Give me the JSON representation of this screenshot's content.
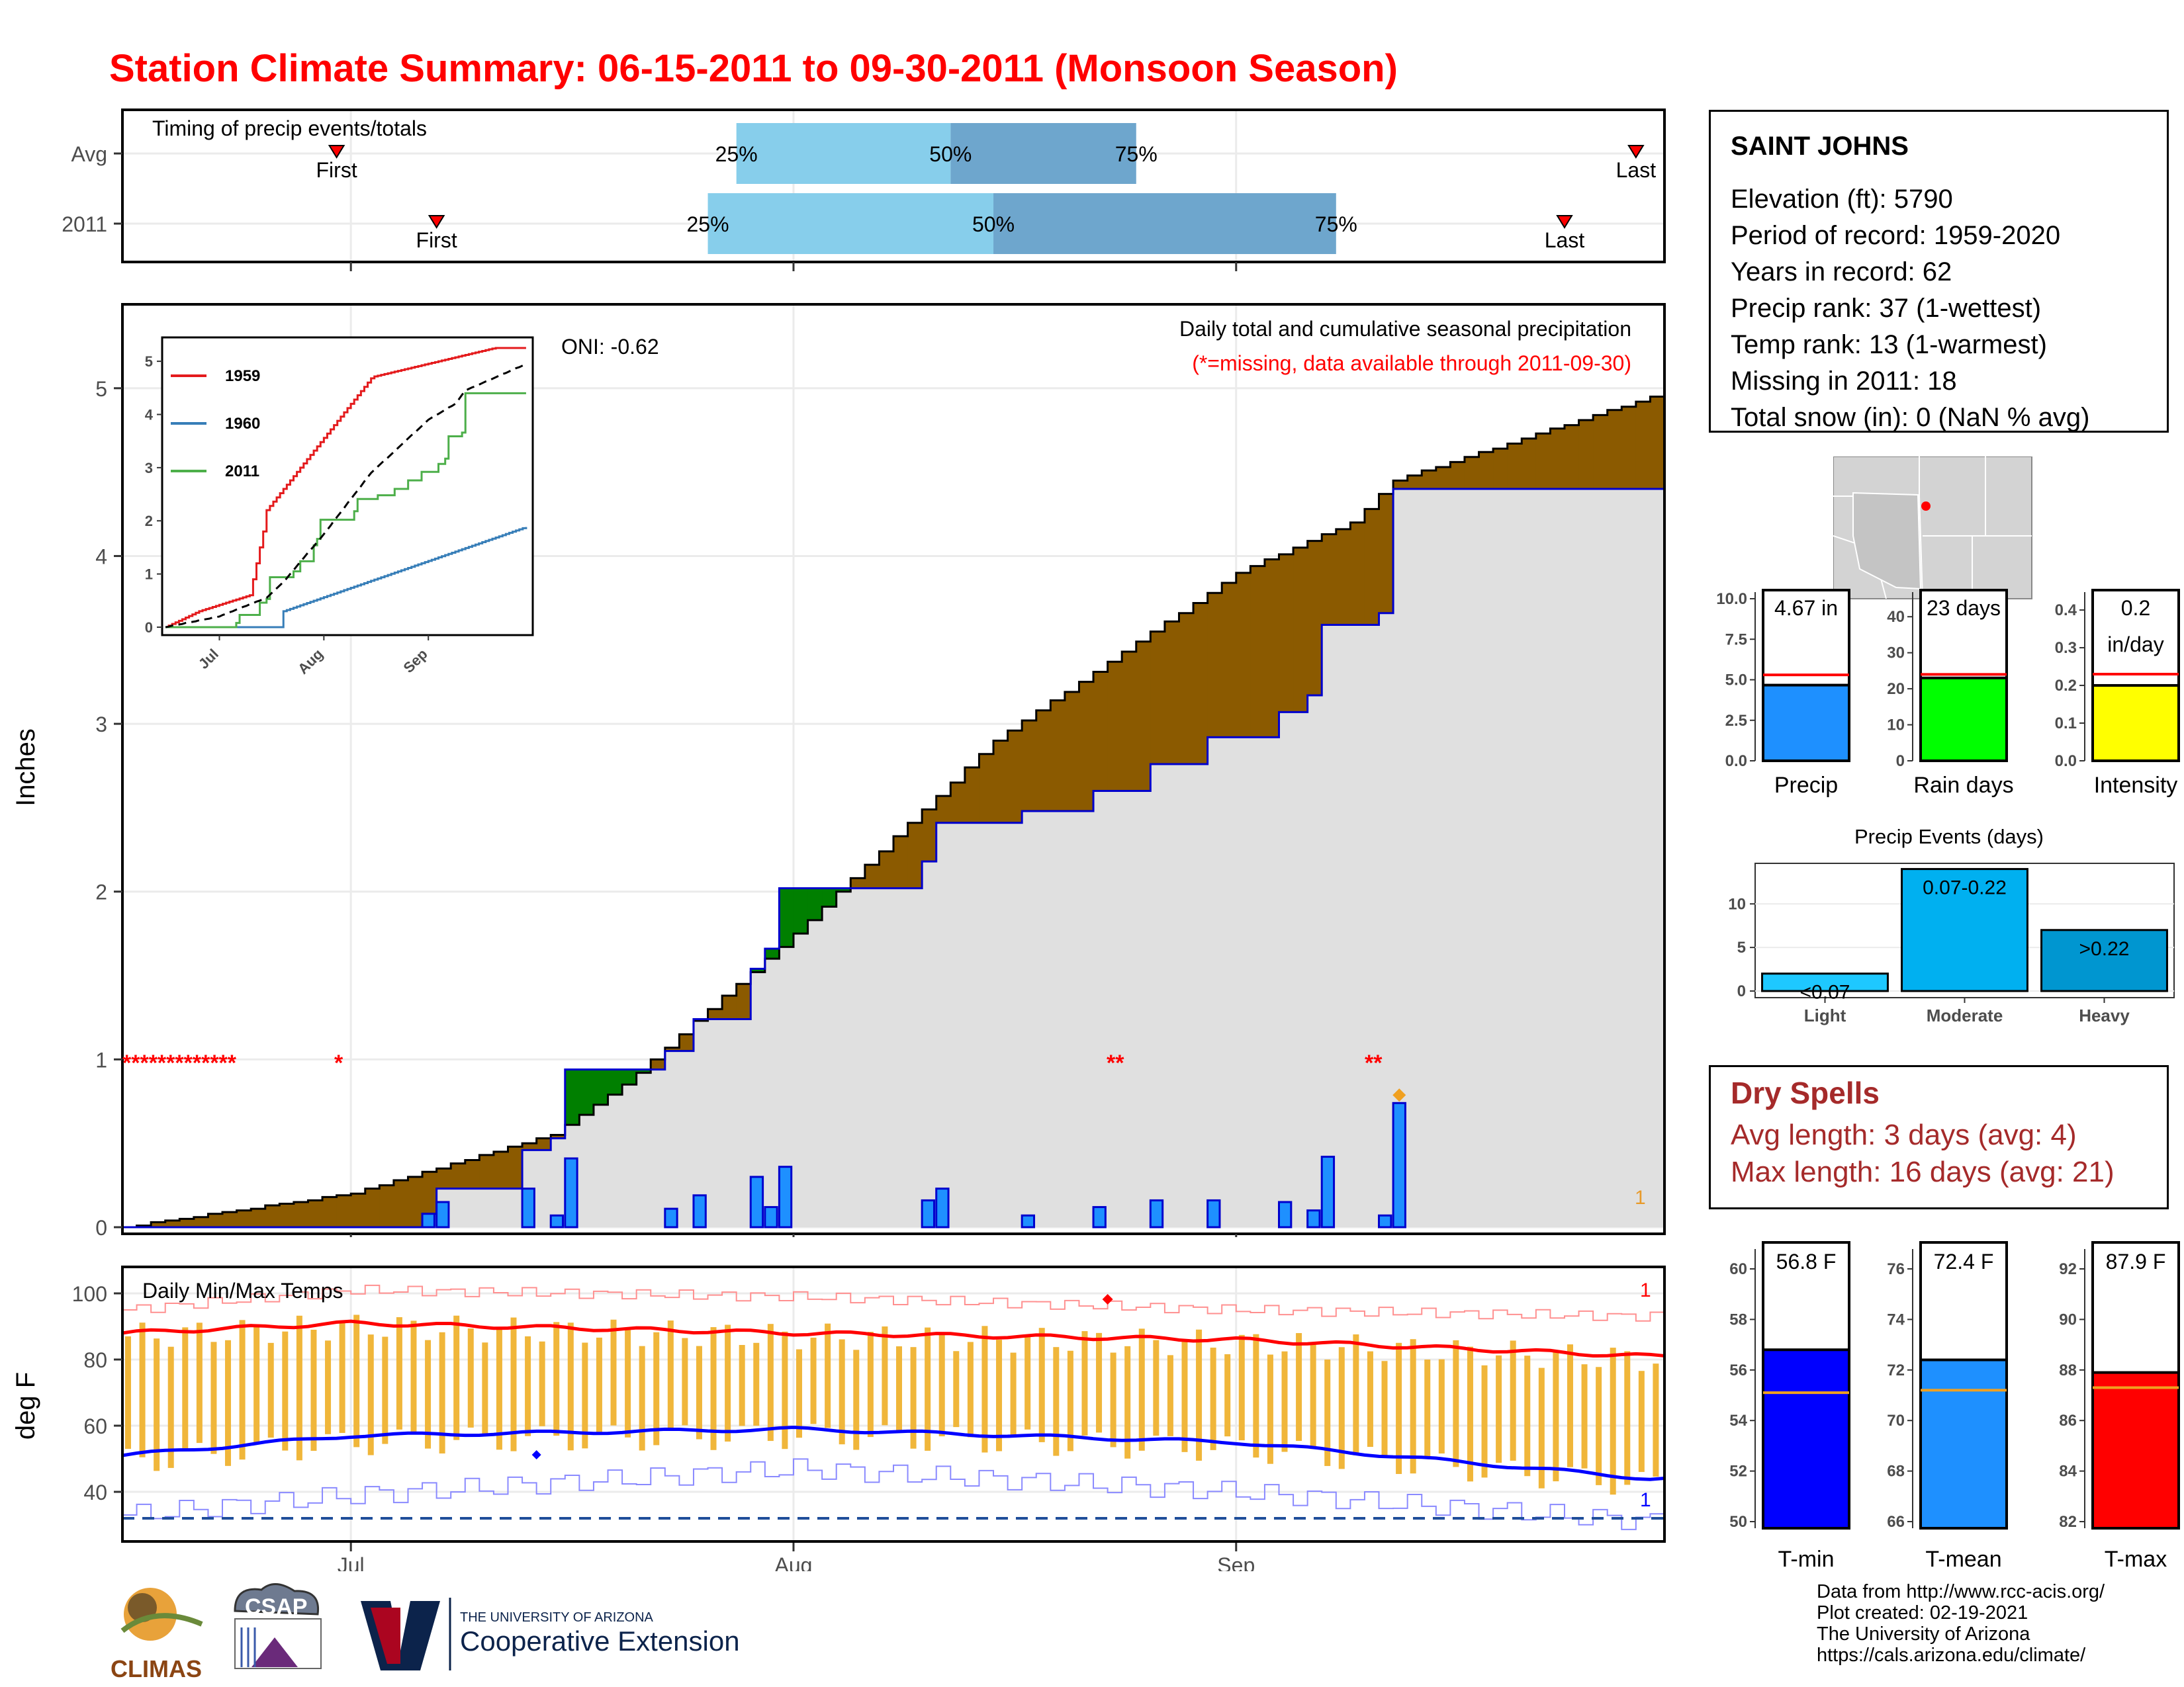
{
  "title": "Station Climate Summary: 06-15-2011 to 09-30-2011 (Monsoon Season)",
  "timing": {
    "title": "Timing of precip events/totals",
    "rows": [
      {
        "label": "Avg",
        "first": "First",
        "last": "Last",
        "p25": "25%",
        "p50": "50%",
        "p75": "75%"
      },
      {
        "label": "2011",
        "first": "First",
        "last": "Last",
        "p25": "25%",
        "p50": "50%",
        "p75": "75%"
      }
    ]
  },
  "station": {
    "name": "SAINT JOHNS",
    "lines": [
      "Elevation (ft): 5790",
      "Period of record: 1959-2020",
      "Years in record: 62",
      "Precip rank: 37 (1-wettest)",
      "Temp rank: 13 (1-warmest)",
      "Missing in 2011: 18",
      "Total snow (in): 0 (NaN % avg)"
    ]
  },
  "precip_panel": {
    "ylabel": "Inches",
    "yticks": [
      "0",
      "1",
      "2",
      "3",
      "4",
      "5"
    ],
    "xticks": [
      "Jul",
      "Aug",
      "Sep"
    ],
    "title_line1": "Daily total and cumulative seasonal precipitation",
    "title_line2": "(*=missing, data available through 2011-09-30)",
    "oni": "ONI: -0.62",
    "missing_marks": "*************",
    "count_label": "1",
    "inset": {
      "yticks": [
        "0",
        "1",
        "2",
        "3",
        "4",
        "5"
      ],
      "xticks": [
        "Jul",
        "Aug",
        "Sep"
      ],
      "legend": [
        "1959",
        "1960",
        "2011"
      ]
    }
  },
  "temp_panel": {
    "title": "Daily Min/Max Temps",
    "ylabel": "deg F",
    "yticks": [
      "40",
      "60",
      "80",
      "100"
    ],
    "xticks": [
      "Jul",
      "Aug",
      "Sep"
    ],
    "count_max": "1",
    "count_min": "1"
  },
  "bar_summaries": {
    "precip": {
      "value": "4.67 in",
      "label": "Precip",
      "yticks": [
        "0.0",
        "2.5",
        "5.0",
        "7.5",
        "10.0"
      ]
    },
    "raindays": {
      "value": "23 days",
      "label": "Rain days",
      "yticks": [
        "0",
        "10",
        "20",
        "30",
        "40"
      ]
    },
    "intensity": {
      "value1": "0.2",
      "value2": "in/day",
      "label": "Intensity",
      "yticks": [
        "0.0",
        "0.1",
        "0.2",
        "0.3",
        "0.4"
      ]
    }
  },
  "events": {
    "title": "Precip Events (days)",
    "yticks": [
      "0",
      "5",
      "10"
    ],
    "bars": [
      {
        "cat": "Light",
        "label": "<0.07"
      },
      {
        "cat": "Moderate",
        "label": "0.07-0.22"
      },
      {
        "cat": "Heavy",
        "label": ">0.22"
      }
    ]
  },
  "dry_spells": {
    "title": "Dry Spells",
    "line1": "Avg length: 3 days (avg: 4)",
    "line2": "Max length: 16 days (avg: 21)"
  },
  "temp_summaries": {
    "tmin": {
      "value": "56.8 F",
      "label": "T-min",
      "yticks": [
        "50",
        "52",
        "54",
        "56",
        "58",
        "60"
      ]
    },
    "tmean": {
      "value": "72.4 F",
      "label": "T-mean",
      "yticks": [
        "66",
        "68",
        "70",
        "72",
        "74",
        "76"
      ]
    },
    "tmax": {
      "value": "87.9 F",
      "label": "T-max",
      "yticks": [
        "82",
        "84",
        "86",
        "88",
        "90",
        "92"
      ]
    }
  },
  "credits": [
    "Data from http://www.rcc-acis.org/",
    "Plot created: 02-19-2021",
    "The University of Arizona",
    "https://cals.arizona.edu/climate/"
  ],
  "logos": {
    "climas": "CLIMAS",
    "csap": "CSAP",
    "ua_small": "THE UNIVERSITY OF ARIZONA",
    "ua_big": "Cooperative Extension"
  },
  "colors": {
    "title": "#ff0000",
    "above_avg": "#8b5a00",
    "below_avg": "#007f00",
    "daily_bar": "#1e90ff",
    "temp_bar": "#f0b63a",
    "tmax_line": "#ff0000",
    "tmin_line": "#0000ff",
    "dry_text": "#a52a2a"
  },
  "chart_data": [
    {
      "type": "bar",
      "name": "timing",
      "categories": [
        "Avg",
        "2011"
      ],
      "first_day": [
        "2011-06-30",
        "2011-07-07"
      ],
      "last_day": [
        "2011-09-29",
        "2011-09-24"
      ],
      "p25": [
        "2011-07-28",
        "2011-07-26"
      ],
      "p50": [
        "2011-08-12",
        "2011-08-15"
      ],
      "p75": [
        "2011-08-25",
        "2011-09-08"
      ]
    },
    {
      "type": "line",
      "name": "cumulative_precip",
      "ylabel": "Inches",
      "ylim": [
        0,
        5.5
      ],
      "x": [
        "2011-06-15",
        "2011-07-01",
        "2011-07-15",
        "2011-07-20",
        "2011-08-01",
        "2011-08-15",
        "2011-09-01",
        "2011-09-09",
        "2011-09-12",
        "2011-09-30"
      ],
      "series": [
        {
          "name": "2011",
          "values": [
            0,
            0,
            0.65,
            1.14,
            2.24,
            2.5,
            3.0,
            3.9,
            4.67,
            4.67
          ]
        },
        {
          "name": "avg",
          "values": [
            0,
            0.2,
            0.55,
            0.85,
            1.75,
            2.9,
            3.9,
            4.2,
            4.45,
            4.95
          ]
        }
      ],
      "daily": [
        [
          "2011-07-06",
          0.08
        ],
        [
          "2011-07-07",
          0.15
        ],
        [
          "2011-07-13",
          0.23
        ],
        [
          "2011-07-15",
          0.07
        ],
        [
          "2011-07-16",
          0.41
        ],
        [
          "2011-07-23",
          0.11
        ],
        [
          "2011-07-25",
          0.19
        ],
        [
          "2011-07-29",
          0.3
        ],
        [
          "2011-07-30",
          0.12
        ],
        [
          "2011-07-31",
          0.36
        ],
        [
          "2011-08-10",
          0.16
        ],
        [
          "2011-08-11",
          0.23
        ],
        [
          "2011-08-17",
          0.07
        ],
        [
          "2011-08-22",
          0.12
        ],
        [
          "2011-08-26",
          0.16
        ],
        [
          "2011-08-30",
          0.16
        ],
        [
          "2011-09-04",
          0.15
        ],
        [
          "2011-09-06",
          0.1
        ],
        [
          "2011-09-07",
          0.42
        ],
        [
          "2011-09-11",
          0.07
        ],
        [
          "2011-09-12",
          0.74
        ]
      ]
    },
    {
      "type": "line",
      "name": "inset_cumulative",
      "ylim": [
        0,
        5.3
      ],
      "series": [
        {
          "name": "1959",
          "end": 5.25
        },
        {
          "name": "1960",
          "end": 1.9
        },
        {
          "name": "2011",
          "end": 4.67
        }
      ]
    },
    {
      "type": "line",
      "name": "daily_temps",
      "ylabel": "deg F",
      "ylim": [
        25,
        108
      ],
      "x": [
        "2011-06-15",
        "2011-07-01",
        "2011-08-01",
        "2011-09-01",
        "2011-09-30"
      ],
      "series": [
        {
          "name": "avg max",
          "values": [
            88,
            91,
            88,
            86,
            81
          ]
        },
        {
          "name": "avg min",
          "values": [
            51,
            57,
            59,
            55,
            44
          ]
        },
        {
          "name": "record max",
          "values": [
            95,
            101,
            99,
            95,
            93
          ]
        },
        {
          "name": "record min",
          "values": [
            33,
            39,
            47,
            40,
            31
          ]
        }
      ]
    },
    {
      "type": "bar",
      "name": "season_summary",
      "categories": [
        "Precip",
        "Rain days",
        "Intensity"
      ],
      "values": [
        4.67,
        23,
        0.2
      ],
      "averages": [
        5.3,
        24,
        0.23
      ]
    },
    {
      "type": "bar",
      "name": "precip_events",
      "categories": [
        "Light",
        "Moderate",
        "Heavy"
      ],
      "values": [
        2,
        14,
        7
      ],
      "ylabel": "days"
    },
    {
      "type": "bar",
      "name": "temp_summary",
      "categories": [
        "T-min",
        "T-mean",
        "T-max"
      ],
      "values": [
        56.8,
        72.4,
        87.9
      ],
      "averages": [
        55.1,
        71.2,
        87.3
      ]
    }
  ]
}
